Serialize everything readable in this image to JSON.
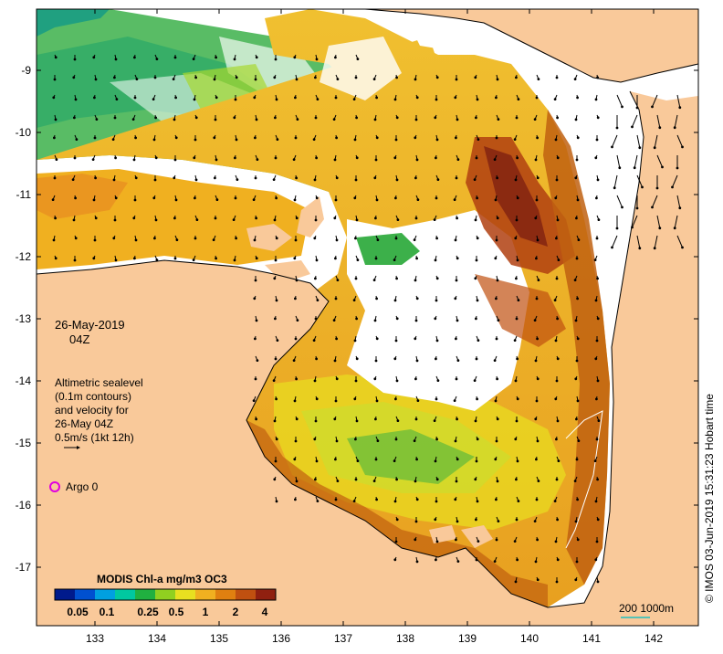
{
  "map": {
    "date": "26-May-2019",
    "time": "04Z",
    "legend_lines": [
      "Altimetric sealevel",
      "(0.1m contours)",
      "and velocity for",
      "26-May 04Z",
      "0.5m/s (1kt 12h)"
    ],
    "argo_label": "Argo 0",
    "scale_label": "200  1000m",
    "credit": "© IMOS 03-Jun-2019 15:31:23 Hobart time",
    "x_ticks": [
      "133",
      "134",
      "135",
      "136",
      "137",
      "138",
      "139",
      "140",
      "141",
      "142"
    ],
    "y_ticks": [
      "-9",
      "-10",
      "-11",
      "-12",
      "-13",
      "-14",
      "-15",
      "-16",
      "-17"
    ],
    "colorbar": {
      "title": "MODIS Chl-a mg/m3 OC3",
      "ticks": [
        "0.05",
        "0.1",
        "0.25",
        "0.5",
        "1",
        "2",
        "4"
      ],
      "colors": [
        "#001a8c",
        "#0050d0",
        "#00a0e0",
        "#00c8a0",
        "#20b040",
        "#90d020",
        "#e8e020",
        "#f0b020",
        "#e08010",
        "#c05010",
        "#902010"
      ]
    },
    "colors": {
      "land": "#f9c99a",
      "nodata": "#ffffff",
      "argo": "#e000e0"
    }
  }
}
